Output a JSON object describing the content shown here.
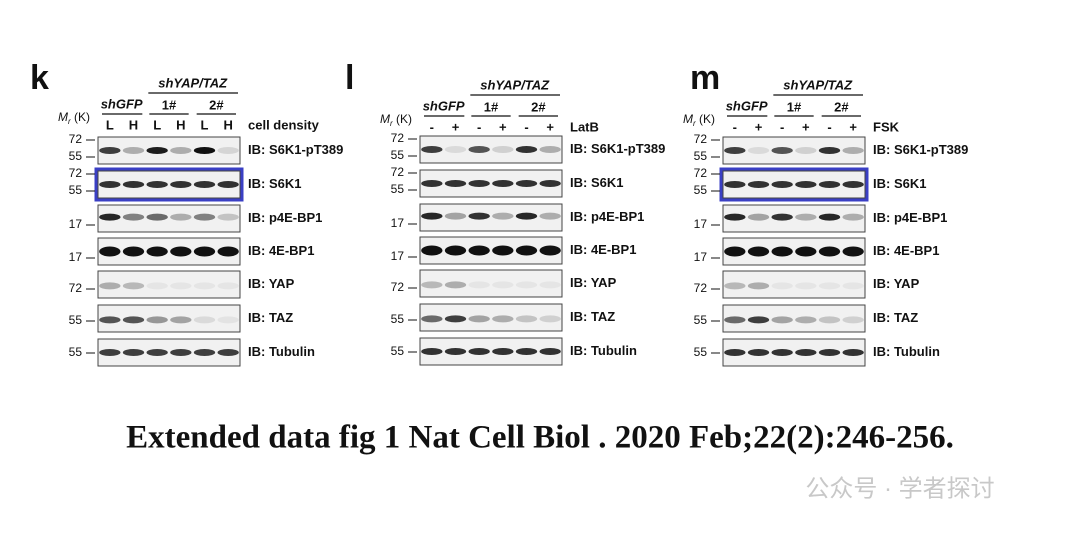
{
  "panels": [
    {
      "letter": "k",
      "group": "shYAP/TAZ",
      "control": "shGFP",
      "subgroups": [
        "1#",
        "2#"
      ],
      "lanes": [
        "L",
        "H",
        "L",
        "H",
        "L",
        "H"
      ],
      "treatment": "cell density",
      "mr": {
        "symbol": "M",
        "subscript": "r",
        "unit": " (K)"
      },
      "rows": [
        {
          "label": "IB: S6K1-pT389",
          "markers": [
            "72",
            "55"
          ]
        },
        {
          "label": "IB: S6K1",
          "markers": [
            "72",
            "55"
          ]
        },
        {
          "label": "IB: p4E-BP1",
          "markers": [
            "17"
          ]
        },
        {
          "label": "IB: 4E-BP1",
          "markers": [
            "17"
          ]
        },
        {
          "label": "IB: YAP",
          "markers": [
            "72"
          ]
        },
        {
          "label": "IB: TAZ",
          "markers": [
            "55"
          ]
        },
        {
          "label": "IB: Tubulin",
          "markers": [
            "55"
          ]
        }
      ]
    },
    {
      "letter": "l",
      "group": "shYAP/TAZ",
      "control": "shGFP",
      "subgroups": [
        "1#",
        "2#"
      ],
      "lanes": [
        "-",
        "+",
        "-",
        "+",
        "-",
        "+"
      ],
      "treatment": "LatB",
      "mr": {
        "symbol": "M",
        "subscript": "r",
        "unit": " (K)"
      },
      "rows": [
        {
          "label": "IB: S6K1-pT389",
          "markers": [
            "72",
            "55"
          ]
        },
        {
          "label": "IB: S6K1",
          "markers": [
            "72",
            "55"
          ]
        },
        {
          "label": "IB: p4E-BP1",
          "markers": [
            "17"
          ]
        },
        {
          "label": "IB: 4E-BP1",
          "markers": [
            "17"
          ]
        },
        {
          "label": "IB: YAP",
          "markers": [
            "72"
          ]
        },
        {
          "label": "IB: TAZ",
          "markers": [
            "55"
          ]
        },
        {
          "label": "IB: Tubulin",
          "markers": [
            "55"
          ]
        }
      ]
    },
    {
      "letter": "m",
      "group": "shYAP/TAZ",
      "control": "shGFP",
      "subgroups": [
        "1#",
        "2#"
      ],
      "lanes": [
        "-",
        "+",
        "-",
        "+",
        "-",
        "+"
      ],
      "treatment": "FSK",
      "mr": {
        "symbol": "M",
        "subscript": "r",
        "unit": " (K)"
      },
      "rows": [
        {
          "label": "IB: S6K1-pT389",
          "markers": [
            "72",
            "55"
          ]
        },
        {
          "label": "IB: S6K1",
          "markers": [
            "72",
            "55"
          ]
        },
        {
          "label": "IB: p4E-BP1",
          "markers": [
            "17"
          ]
        },
        {
          "label": "IB: 4E-BP1",
          "markers": [
            "17"
          ]
        },
        {
          "label": "IB: YAP",
          "markers": [
            "72"
          ]
        },
        {
          "label": "IB: TAZ",
          "markers": [
            "55"
          ]
        },
        {
          "label": "IB: Tubulin",
          "markers": [
            "55"
          ]
        }
      ]
    }
  ],
  "caption": "Extended data fig 1 Nat Cell Biol . 2020 Feb;22(2):246-256.",
  "watermark": "公众号 · 学者探讨"
}
